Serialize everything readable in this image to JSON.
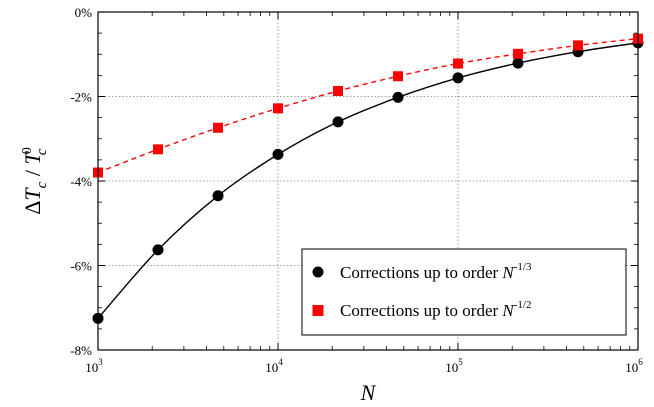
{
  "chart_data": {
    "type": "line",
    "xlabel": "N",
    "ylabel": {
      "delta": "Δ",
      "t1": "T",
      "sub1": "c",
      "slash": " / ",
      "t2": "T",
      "sub2": "c",
      "sup2": "0"
    },
    "x_scale": "log",
    "xlim": [
      1000,
      1000000
    ],
    "ylim": [
      -8,
      0
    ],
    "grid": true,
    "legend_position": "bottom-right",
    "x_ticks": [
      {
        "value": 1000,
        "base": "10",
        "exp": "3"
      },
      {
        "value": 10000,
        "base": "10",
        "exp": "4"
      },
      {
        "value": 100000,
        "base": "10",
        "exp": "5"
      },
      {
        "value": 1000000,
        "base": "10",
        "exp": "6"
      }
    ],
    "y_ticks": [
      {
        "value": 0,
        "label": "0%"
      },
      {
        "value": -2,
        "label": "-2%"
      },
      {
        "value": -4,
        "label": "-4%"
      },
      {
        "value": -6,
        "label": "-6%"
      },
      {
        "value": -8,
        "label": "-8%"
      }
    ],
    "series": [
      {
        "name": "Corrections up to order N^-1/3",
        "legend": {
          "text": "Corrections up to order ",
          "var": "N",
          "sup": "-1/3"
        },
        "marker": "circle",
        "line": "solid",
        "color": "#000000",
        "x": [
          1000,
          2154,
          4642,
          10000,
          21544,
          46416,
          100000,
          215443,
          464159,
          1000000
        ],
        "y": [
          -7.25,
          -5.63,
          -4.35,
          -3.37,
          -2.6,
          -2.02,
          -1.56,
          -1.21,
          -0.94,
          -0.73
        ]
      },
      {
        "name": "Corrections up to order N^-1/2",
        "legend": {
          "text": "Corrections up to order ",
          "var": "N",
          "sup": "-1/2"
        },
        "marker": "square",
        "line": "dashed",
        "color": "#ff0000",
        "x": [
          1000,
          2154,
          4642,
          10000,
          21544,
          46416,
          100000,
          215443,
          464159,
          1000000
        ],
        "y": [
          -3.8,
          -3.25,
          -2.74,
          -2.28,
          -1.87,
          -1.52,
          -1.22,
          -0.99,
          -0.79,
          -0.63
        ]
      }
    ]
  }
}
